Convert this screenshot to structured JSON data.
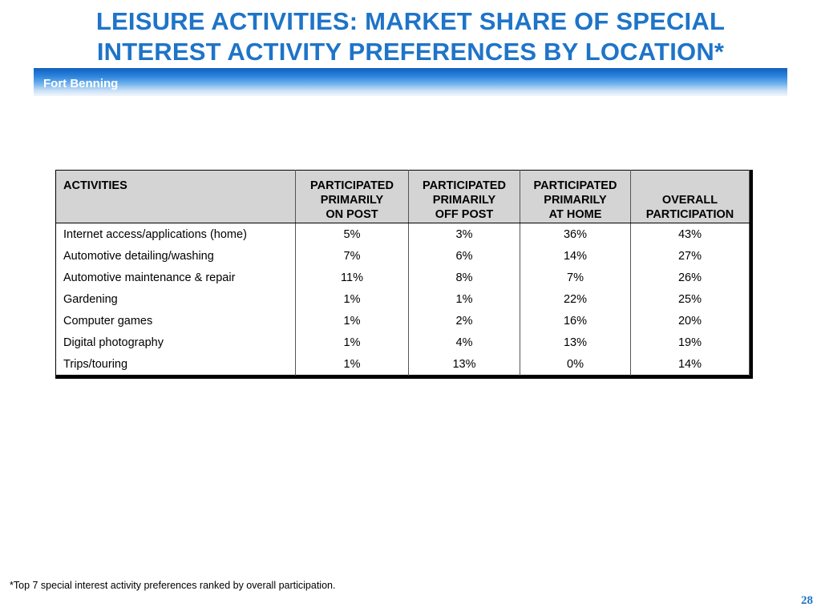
{
  "title_line1": "LEISURE ACTIVITIES: MARKET SHARE OF SPECIAL",
  "title_line2": "INTEREST ACTIVITY PREFERENCES BY LOCATION*",
  "banner": "Fort Benning",
  "table": {
    "headers": [
      [
        "ACTIVITIES"
      ],
      [
        "PARTICIPATED",
        "PRIMARILY",
        "ON POST"
      ],
      [
        "PARTICIPATED",
        "PRIMARILY",
        "OFF POST"
      ],
      [
        "PARTICIPATED",
        "PRIMARILY",
        "AT HOME"
      ],
      [
        "OVERALL",
        "PARTICIPATION"
      ]
    ],
    "rows": [
      [
        "Internet access/applications (home)",
        "5%",
        "3%",
        "36%",
        "43%"
      ],
      [
        "Automotive detailing/washing",
        "7%",
        "6%",
        "14%",
        "27%"
      ],
      [
        "Automotive maintenance & repair",
        "11%",
        "8%",
        "7%",
        "26%"
      ],
      [
        "Gardening",
        "1%",
        "1%",
        "22%",
        "25%"
      ],
      [
        "Computer games",
        "1%",
        "2%",
        "16%",
        "20%"
      ],
      [
        "Digital photography",
        "1%",
        "4%",
        "13%",
        "19%"
      ],
      [
        "Trips/touring",
        "1%",
        "13%",
        "0%",
        "14%"
      ]
    ]
  },
  "footnote": "*Top 7 special interest activity preferences ranked by overall participation.",
  "page_number": "28",
  "colors": {
    "title": "#1e74c8",
    "banner": "#2f86dd",
    "header_bg": "#d4d4d4"
  }
}
